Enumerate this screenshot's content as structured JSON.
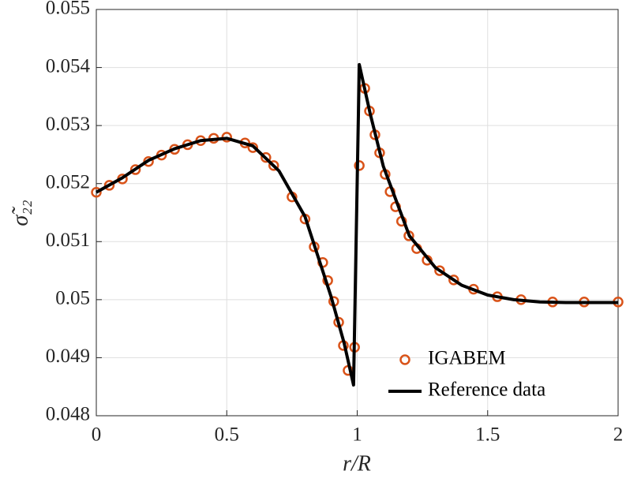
{
  "chart_data": {
    "type": "line",
    "xlabel": "r/R",
    "ylabel": "σ̃₂₂",
    "xlim": [
      0,
      2
    ],
    "xticks": [
      0,
      0.5,
      1,
      1.5,
      2
    ],
    "ylim": [
      0.048,
      0.055
    ],
    "yticks": [
      0.048,
      0.049,
      0.05,
      0.051,
      0.052,
      0.053,
      0.054,
      0.055
    ],
    "grid": true,
    "legend": "lower-right",
    "series": [
      {
        "name": "IGABEM",
        "color": "#d95319",
        "mode": "markers",
        "x": [
          0,
          0.05,
          0.1,
          0.15,
          0.2,
          0.25,
          0.3,
          0.35,
          0.4,
          0.45,
          0.5,
          0.57,
          0.6,
          0.65,
          0.68,
          0.75,
          0.8,
          0.835,
          0.868,
          0.887,
          0.91,
          0.929,
          0.947,
          0.965,
          0.99,
          1.008,
          1.029,
          1.047,
          1.068,
          1.086,
          1.107,
          1.126,
          1.147,
          1.17,
          1.198,
          1.228,
          1.268,
          1.316,
          1.37,
          1.446,
          1.537,
          1.628,
          1.749,
          1.87,
          2
        ],
        "values": [
          0.05185,
          0.05197,
          0.05208,
          0.05224,
          0.05238,
          0.05249,
          0.05259,
          0.05267,
          0.05274,
          0.05278,
          0.0528,
          0.0527,
          0.05262,
          0.05245,
          0.05231,
          0.05177,
          0.05139,
          0.05091,
          0.05064,
          0.05033,
          0.04997,
          0.04961,
          0.04921,
          0.04878,
          0.04918,
          0.05231,
          0.05364,
          0.05325,
          0.05284,
          0.05253,
          0.05216,
          0.05186,
          0.0516,
          0.05135,
          0.0511,
          0.05088,
          0.05068,
          0.0505,
          0.05034,
          0.05018,
          0.05005,
          0.05,
          0.04996,
          0.04996,
          0.04996
        ]
      },
      {
        "name": "Reference data",
        "color": "#000000",
        "mode": "line",
        "x": [
          0,
          0.1,
          0.2,
          0.3,
          0.4,
          0.5,
          0.6,
          0.7,
          0.8,
          0.9,
          0.95,
          0.986,
          1.008,
          1.05,
          1.1,
          1.2,
          1.3,
          1.4,
          1.5,
          1.6,
          1.7,
          1.8,
          1.9,
          2
        ],
        "values": [
          0.05185,
          0.0521,
          0.0524,
          0.0526,
          0.05274,
          0.05278,
          0.05265,
          0.05222,
          0.05143,
          0.05005,
          0.04925,
          0.04853,
          0.05405,
          0.0532,
          0.0523,
          0.0511,
          0.05055,
          0.05025,
          0.05008,
          0.05,
          0.04996,
          0.04995,
          0.04995,
          0.04995
        ]
      }
    ]
  }
}
